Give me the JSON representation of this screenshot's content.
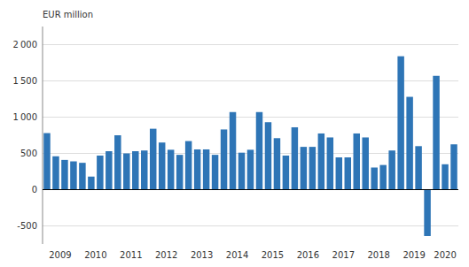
{
  "chart_data": {
    "type": "bar",
    "ylabel": "EUR million",
    "categories": [
      "2009",
      null,
      null,
      null,
      "2010",
      null,
      null,
      null,
      "2011",
      null,
      null,
      null,
      "2012",
      null,
      null,
      null,
      "2013",
      null,
      null,
      null,
      "2014",
      null,
      null,
      null,
      "2015",
      null,
      null,
      null,
      "2016",
      null,
      null,
      null,
      "2017",
      null,
      null,
      null,
      "2018",
      null,
      null,
      null,
      "2019",
      null,
      null,
      null,
      "2020",
      null,
      null
    ],
    "values": [
      780,
      460,
      410,
      390,
      370,
      180,
      470,
      530,
      750,
      500,
      530,
      540,
      840,
      650,
      550,
      480,
      670,
      555,
      555,
      480,
      830,
      1070,
      510,
      550,
      1070,
      930,
      710,
      470,
      860,
      590,
      590,
      775,
      720,
      445,
      445,
      775,
      720,
      305,
      340,
      540,
      1840,
      1280,
      600,
      -640,
      1570,
      350,
      625
    ],
    "color": "#2e75b6",
    "ylim": [
      -750,
      2250
    ],
    "yticks": [
      -500,
      0,
      {
        "value": 500,
        "label": "500"
      },
      {
        "value": 1000,
        "label": "1 000"
      },
      {
        "value": 1500,
        "label": "1 500"
      },
      {
        "value": 2000,
        "label": "2 000"
      }
    ],
    "grid": true
  }
}
